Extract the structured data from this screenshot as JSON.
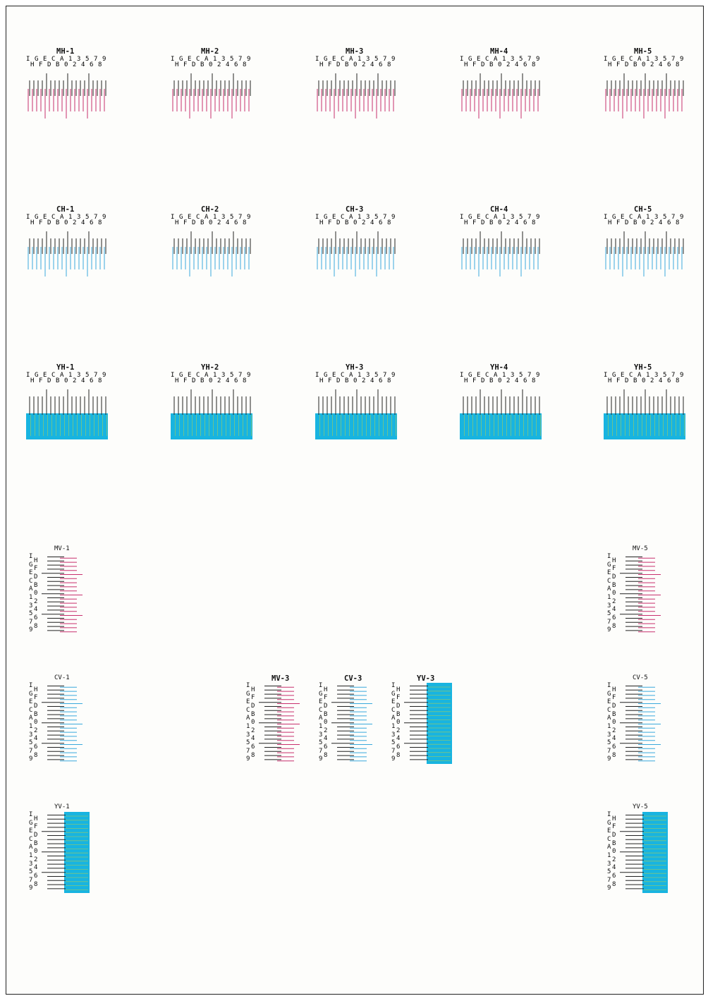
{
  "horizontal_rows": {
    "top_labels": [
      "I",
      "G",
      "E",
      "C",
      "A",
      "1",
      "3",
      "5",
      "7",
      "9"
    ],
    "bottom_labels": [
      "H",
      "F",
      "D",
      "B",
      "0",
      "2",
      "4",
      "6",
      "8"
    ],
    "groups": [
      {
        "color": "magenta",
        "titles": [
          "MH-1",
          "MH-2",
          "MH-3",
          "MH-4",
          "MH-5"
        ]
      },
      {
        "color": "cyan",
        "titles": [
          "CH-1",
          "CH-2",
          "CH-3",
          "CH-4",
          "CH-5"
        ]
      },
      {
        "color": "yellow",
        "titles": [
          "YH-1",
          "YH-2",
          "YH-3",
          "YH-4",
          "YH-5"
        ]
      }
    ]
  },
  "vertical_patterns": {
    "left_labels": [
      "I",
      "G",
      "E",
      "C",
      "A",
      "1",
      "3",
      "5",
      "7",
      "9"
    ],
    "right_labels": [
      "H",
      "F",
      "D",
      "B",
      "0",
      "2",
      "4",
      "6",
      "8"
    ],
    "items": [
      {
        "title": "MV-1",
        "color": "magenta"
      },
      {
        "title": "MV-5",
        "color": "magenta"
      },
      {
        "title": "CV-1",
        "color": "cyan"
      },
      {
        "title": "MV-3",
        "color": "magenta"
      },
      {
        "title": "CV-3",
        "color": "cyan"
      },
      {
        "title": "YV-3",
        "color": "yellow"
      },
      {
        "title": "CV-5",
        "color": "cyan"
      },
      {
        "title": "YV-1",
        "color": "yellow"
      },
      {
        "title": "YV-5",
        "color": "yellow"
      }
    ]
  },
  "colors": {
    "magenta": "#c8306e",
    "cyan": "#3aa9dc",
    "yellow_fill": "#18b4e0",
    "yellow_line": "#c8d23a",
    "black": "#222222"
  }
}
